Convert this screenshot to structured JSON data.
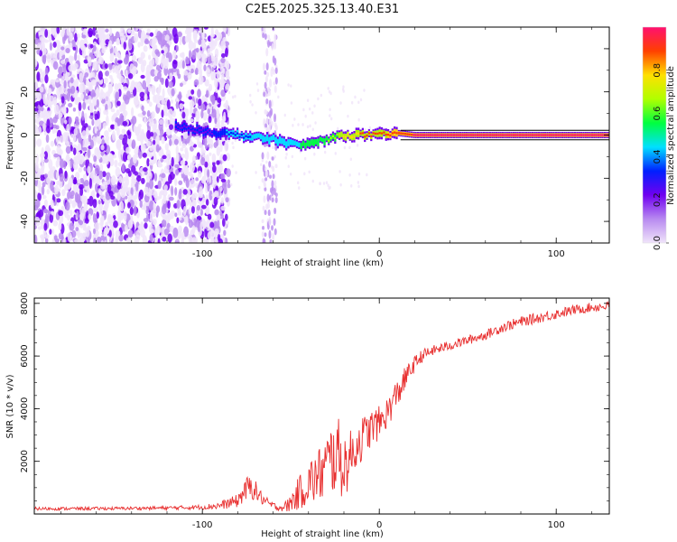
{
  "title": "C2E5.2025.325.13.40.E31",
  "chart_data": [
    {
      "type": "heatmap",
      "xlabel": "Height of straight line (km)",
      "ylabel": "Frequency (Hz)",
      "xlim": [
        -195,
        130
      ],
      "ylim": [
        -50,
        50
      ],
      "xticks": [
        -100,
        0,
        100
      ],
      "yticks": [
        -40,
        -20,
        0,
        20,
        40
      ],
      "colorbar": {
        "label": "Normalized spectral amplitude",
        "range": [
          0,
          1
        ],
        "ticks": [
          "0.0",
          "0.2",
          "0.4",
          "0.6",
          "0.8"
        ],
        "tick_values": [
          0.0,
          0.2,
          0.4,
          0.6,
          0.8
        ],
        "colors": [
          "#f0e4fa",
          "#b88af0",
          "#7000f0",
          "#0020ff",
          "#00e0ff",
          "#00ff40",
          "#b0ff00",
          "#ffe000",
          "#ff4000",
          "#ff1070"
        ]
      },
      "signal_track": {
        "description": "carrier line frequency offset vs height",
        "x": [
          -115,
          -100,
          -90,
          -80,
          -70,
          -60,
          -55,
          -50,
          -45,
          -40,
          -35,
          -30,
          -25,
          -20,
          -15,
          -10,
          0,
          10,
          20,
          40,
          80,
          130
        ],
        "freq": [
          4,
          2,
          1,
          0,
          -1,
          -2,
          -3,
          -4,
          -5,
          -4,
          -3,
          -2,
          -1,
          0,
          0,
          0,
          0,
          1,
          0,
          0,
          0,
          0
        ],
        "amplitude": [
          0.25,
          0.25,
          0.3,
          0.35,
          0.4,
          0.45,
          0.4,
          0.45,
          0.5,
          0.6,
          0.55,
          0.6,
          0.65,
          0.75,
          0.8,
          0.85,
          0.85,
          0.9,
          0.95,
          0.95,
          0.95,
          0.95
        ]
      },
      "noise_region_xlim": [
        -195,
        -85
      ]
    },
    {
      "type": "line",
      "xlabel": "Height of straight line (km)",
      "ylabel": "SNR (10 * v/v)",
      "xlim": [
        -195,
        130
      ],
      "ylim": [
        0,
        8200
      ],
      "xticks": [
        -100,
        0,
        100
      ],
      "yticks": [
        2000,
        4000,
        6000,
        8000
      ],
      "series": [
        {
          "name": "SNR",
          "color": "#e83030",
          "x": [
            -195,
            -150,
            -120,
            -100,
            -90,
            -80,
            -76,
            -72,
            -68,
            -64,
            -60,
            -56,
            -52,
            -48,
            -44,
            -40,
            -36,
            -32,
            -28,
            -24,
            -20,
            -16,
            -12,
            -8,
            -4,
            0,
            4,
            8,
            12,
            16,
            20,
            24,
            30,
            40,
            50,
            60,
            70,
            80,
            90,
            100,
            110,
            120,
            130
          ],
          "y": [
            200,
            210,
            230,
            260,
            320,
            500,
            900,
            1050,
            700,
            450,
            300,
            240,
            300,
            600,
            900,
            1200,
            1350,
            1600,
            2000,
            2300,
            1800,
            2200,
            2700,
            3000,
            3300,
            3450,
            3800,
            4300,
            4800,
            5300,
            5700,
            6000,
            6200,
            6400,
            6600,
            6800,
            7100,
            7300,
            7450,
            7600,
            7750,
            7850,
            7900
          ],
          "noise": [
            60,
            60,
            70,
            90,
            150,
            250,
            450,
            500,
            300,
            200,
            150,
            120,
            250,
            500,
            700,
            900,
            1000,
            1200,
            1400,
            1500,
            1300,
            1000,
            900,
            800,
            700,
            650,
            600,
            600,
            550,
            400,
            300,
            250,
            200,
            180,
            180,
            180,
            200,
            200,
            200,
            200,
            180,
            180,
            180
          ]
        }
      ]
    }
  ]
}
